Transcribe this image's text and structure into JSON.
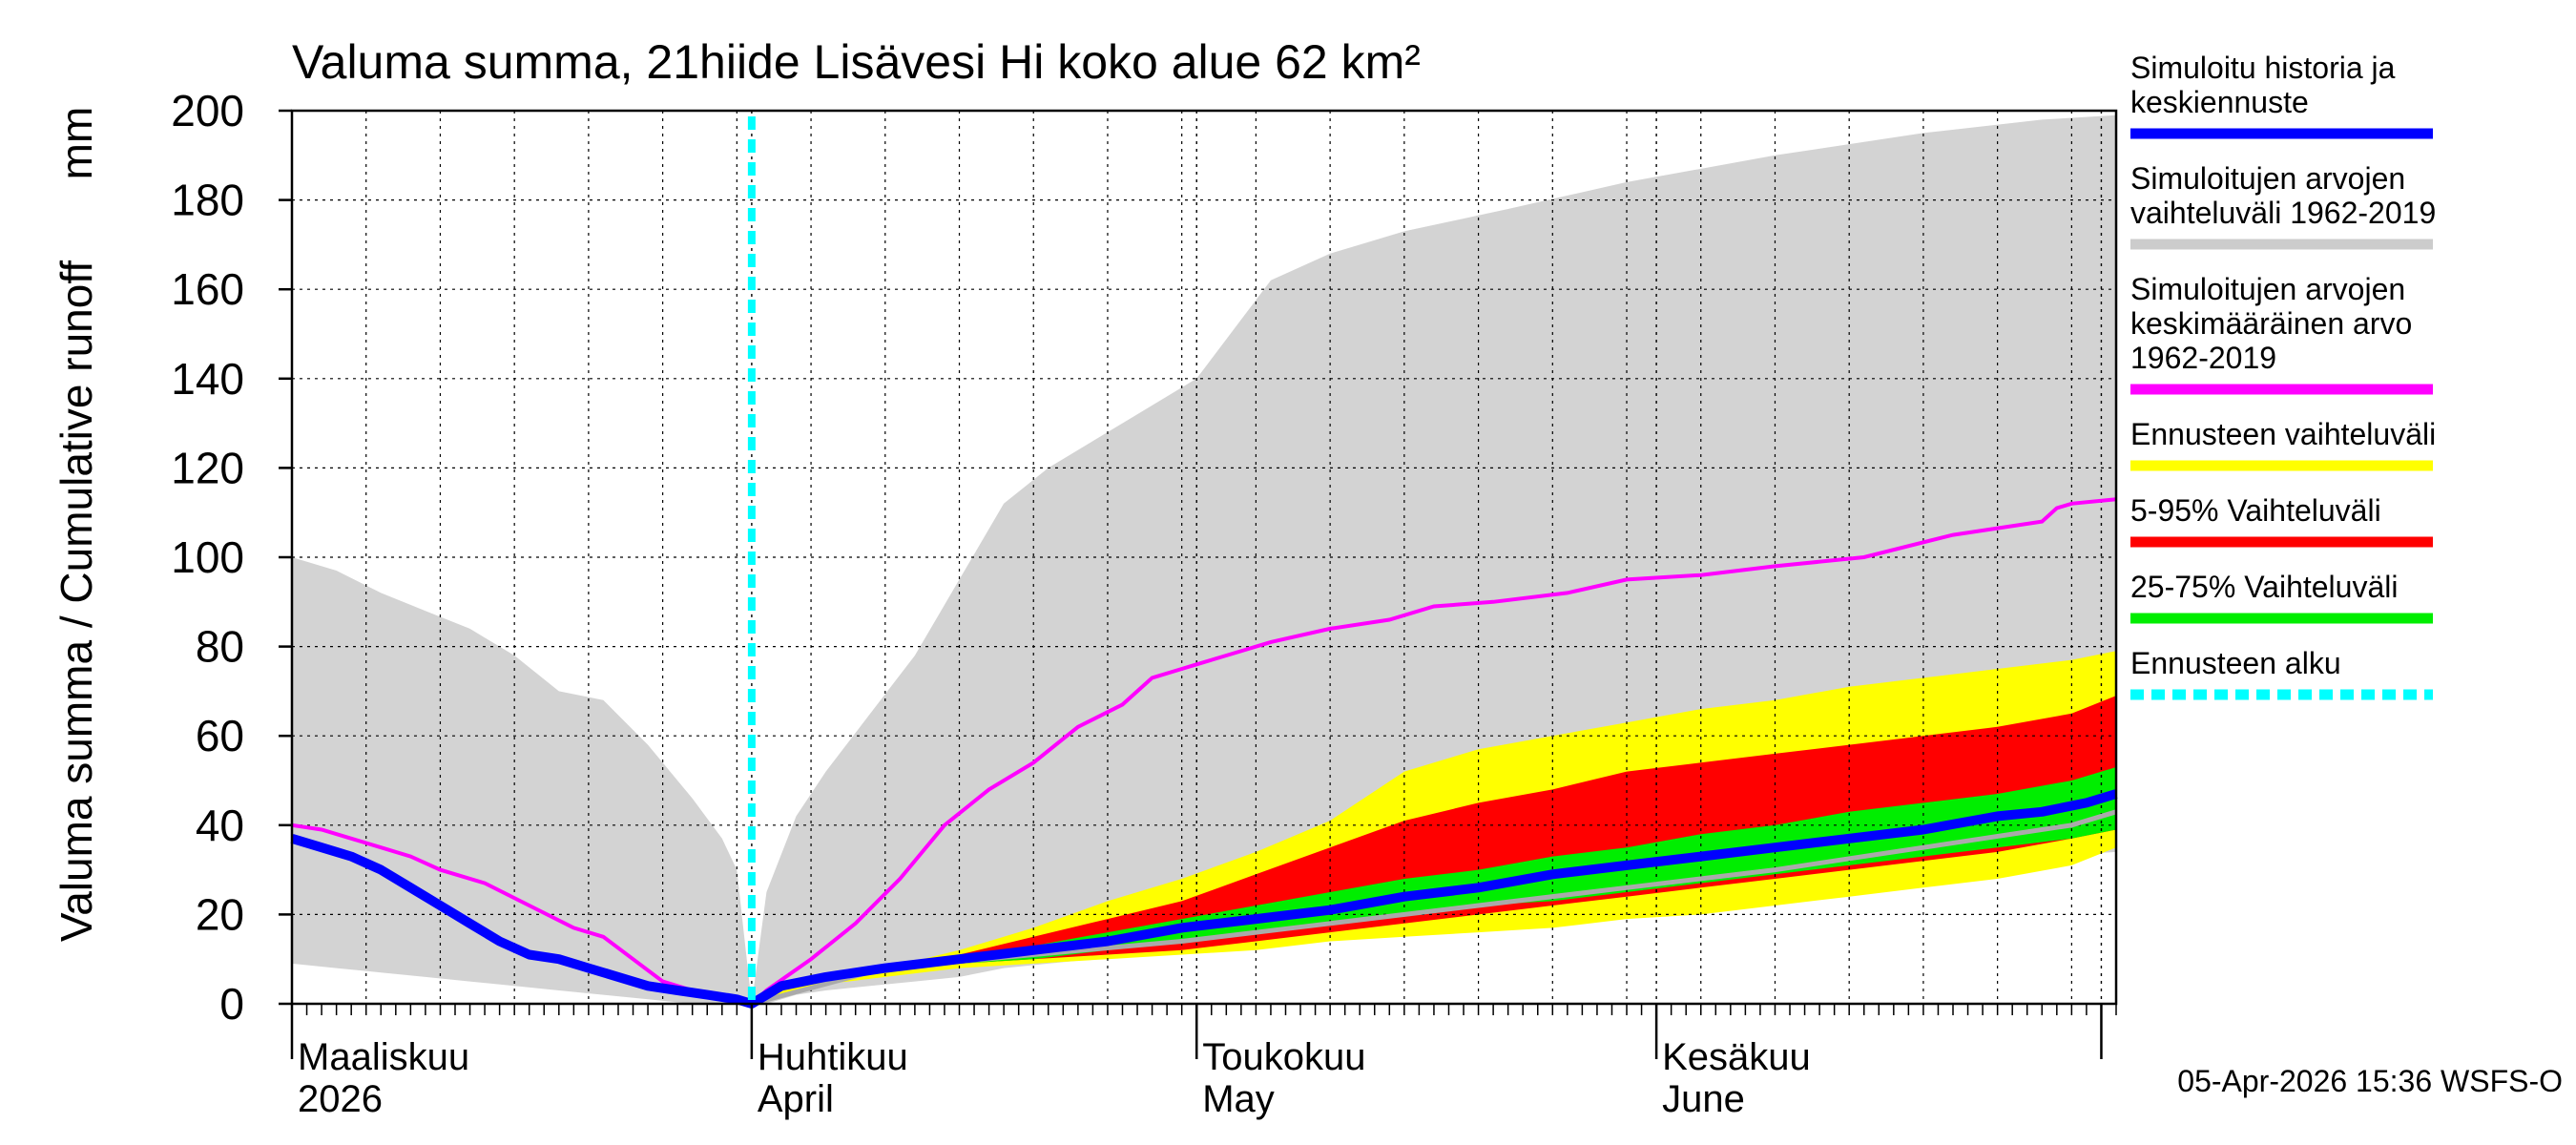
{
  "chart_data": {
    "type": "area",
    "title": "Valuma summa, 21hiide Lisävesi Hi koko alue 62 km²",
    "ylabel": "Valuma summa / Cumulative runoff",
    "yunit": "mm",
    "ylim": [
      0,
      200
    ],
    "yticks": [
      0,
      20,
      40,
      60,
      80,
      100,
      120,
      140,
      160,
      180,
      200
    ],
    "xlim": [
      0,
      123
    ],
    "x_unit": "days since 1 March 2026",
    "forecast_start_day": 31,
    "month_labels": [
      {
        "day": 0,
        "fi": "Maaliskuu",
        "en": "2026"
      },
      {
        "day": 31,
        "fi": "Huhtikuu",
        "en": "April"
      },
      {
        "day": 61,
        "fi": "Toukokuu",
        "en": "May"
      },
      {
        "day": 92,
        "fi": "Kesäkuu",
        "en": "June"
      }
    ],
    "month_boundaries": [
      0,
      31,
      61,
      92,
      122
    ],
    "colors": {
      "history_range": "#d3d3d3",
      "history_mean": "#ff00ff",
      "simulated": "#0000ff",
      "forecast_range": "#ffff00",
      "range_5_95": "#ff0000",
      "range_25_75": "#00ee00",
      "forecast_start": "#00ffff",
      "median": "#aaaaaa"
    },
    "history_range": {
      "x": [
        0,
        3,
        6,
        9,
        12,
        15,
        18,
        21,
        24,
        27,
        29,
        30,
        31,
        32,
        34,
        36,
        39,
        42,
        45,
        48,
        51,
        54,
        57,
        61,
        66,
        70,
        75,
        82,
        90,
        100,
        110,
        118,
        123
      ],
      "upper": [
        100,
        97,
        92,
        88,
        84,
        78,
        70,
        68,
        58,
        46,
        37,
        30,
        0,
        25,
        42,
        52,
        65,
        78,
        95,
        112,
        120,
        126,
        132,
        140,
        162,
        168,
        173,
        178,
        184,
        190,
        195,
        198,
        199
      ],
      "lower": [
        9,
        8,
        7,
        6,
        5,
        4,
        3,
        2,
        1,
        0,
        0,
        0,
        0,
        0,
        2,
        3,
        4,
        5,
        6,
        8,
        9,
        10,
        11,
        12,
        15,
        17,
        19,
        22,
        25,
        28,
        31,
        33,
        34
      ]
    },
    "history_mean": {
      "x": [
        0,
        2,
        4,
        6,
        8,
        10,
        13,
        16,
        19,
        21,
        23,
        25,
        27,
        29,
        30,
        31,
        32,
        35,
        38,
        41,
        44,
        47,
        50,
        53,
        56,
        58,
        60,
        61,
        63,
        66,
        70,
        74,
        77,
        81,
        86,
        90,
        95,
        100,
        106,
        112,
        118,
        119,
        120,
        123
      ],
      "y": [
        40,
        39,
        37,
        35,
        33,
        30,
        27,
        22,
        17,
        15,
        10,
        5,
        3,
        2,
        1,
        0,
        3,
        10,
        18,
        28,
        40,
        48,
        54,
        62,
        67,
        73,
        75,
        76,
        78,
        81,
        84,
        86,
        89,
        90,
        92,
        95,
        96,
        98,
        100,
        105,
        108,
        111,
        112,
        113
      ]
    },
    "simulated": {
      "x": [
        0,
        2,
        4,
        6,
        8,
        10,
        12,
        14,
        16,
        18,
        20,
        22,
        24,
        26,
        28,
        30,
        31,
        33,
        36,
        40,
        45,
        50,
        55,
        60,
        65,
        70,
        75,
        80,
        85,
        90,
        95,
        100,
        105,
        110,
        115,
        118,
        121,
        123
      ],
      "y": [
        37,
        35,
        33,
        30,
        26,
        22,
        18,
        14,
        11,
        10,
        8,
        6,
        4,
        3,
        2,
        1,
        0,
        4,
        6,
        8,
        10,
        12,
        14,
        17,
        19,
        21,
        24,
        26,
        29,
        31,
        33,
        35,
        37,
        39,
        42,
        43,
        45,
        47
      ]
    },
    "forecast_range": {
      "x": [
        31,
        35,
        40,
        45,
        50,
        55,
        60,
        65,
        70,
        75,
        80,
        85,
        90,
        95,
        100,
        105,
        110,
        115,
        120,
        123
      ],
      "upper": [
        0,
        6,
        8,
        12,
        17,
        23,
        28,
        34,
        41,
        52,
        57,
        60,
        63,
        66,
        68,
        71,
        73,
        75,
        77,
        79
      ],
      "lower": [
        0,
        4,
        6,
        8,
        9,
        10,
        11,
        12,
        14,
        15,
        16,
        17,
        19,
        20,
        22,
        24,
        26,
        28,
        31,
        35
      ]
    },
    "range_5_95": {
      "x": [
        31,
        35,
        40,
        45,
        50,
        55,
        60,
        65,
        70,
        75,
        80,
        85,
        90,
        95,
        100,
        105,
        110,
        115,
        120,
        123
      ],
      "upper": [
        0,
        5,
        7,
        11,
        15,
        19,
        23,
        29,
        35,
        41,
        45,
        48,
        52,
        54,
        56,
        58,
        60,
        62,
        65,
        69
      ],
      "lower": [
        0,
        5,
        7,
        9,
        10,
        11,
        12,
        14,
        16,
        18,
        20,
        22,
        24,
        26,
        28,
        30,
        32,
        34,
        37,
        39
      ]
    },
    "range_25_75": {
      "x": [
        31,
        35,
        40,
        45,
        50,
        55,
        60,
        65,
        70,
        75,
        80,
        85,
        90,
        95,
        100,
        105,
        110,
        115,
        120,
        123
      ],
      "upper": [
        0,
        5,
        7,
        10,
        13,
        16,
        19,
        22,
        25,
        28,
        30,
        33,
        35,
        38,
        40,
        43,
        45,
        47,
        50,
        53
      ],
      "lower": [
        0,
        5,
        7,
        9,
        10,
        12,
        14,
        16,
        18,
        20,
        22,
        23,
        25,
        27,
        29,
        31,
        33,
        35,
        37,
        39
      ]
    },
    "median": {
      "x": [
        31,
        40,
        50,
        60,
        70,
        80,
        90,
        100,
        110,
        120,
        123
      ],
      "y": [
        0,
        8,
        11,
        14,
        18,
        22,
        26,
        30,
        35,
        40,
        43
      ]
    },
    "legend": [
      {
        "label": "Simuloitu historia ja keskiennuste",
        "color": "#0000ff",
        "style": "solid"
      },
      {
        "label": "Simuloitujen arvojen vaihteluväli 1962-2019",
        "color": "#cccccc",
        "style": "solid"
      },
      {
        "label": "Simuloitujen arvojen keskimääräinen arvo 1962-2019",
        "color": "#ff00ff",
        "style": "solid"
      },
      {
        "label": "Ennusteen vaihteluväli",
        "color": "#ffff00",
        "style": "solid"
      },
      {
        "label": "5-95% Vaihteluväli",
        "color": "#ff0000",
        "style": "solid"
      },
      {
        "label": "25-75% Vaihteluväli",
        "color": "#00ee00",
        "style": "solid"
      },
      {
        "label": "Ennusteen alku",
        "color": "#00ffff",
        "style": "dashed"
      }
    ],
    "timestamp": "05-Apr-2026 15:36 WSFS-O"
  }
}
